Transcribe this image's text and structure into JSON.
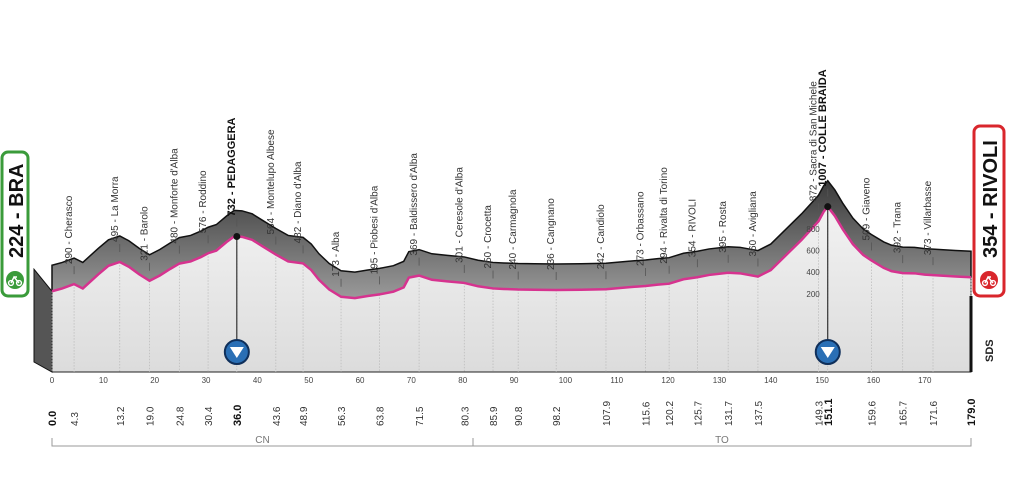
{
  "chart_data": {
    "type": "area",
    "title": "",
    "start": {
      "name": "BRA",
      "altitude": "224",
      "color": "#3a9b3a"
    },
    "finish": {
      "name": "RIVOLI",
      "altitude": "354",
      "color": "#d9262c"
    },
    "xlim": [
      0,
      179
    ],
    "ylim": [
      0,
      1100
    ],
    "distance_ticks": [
      "0",
      "10",
      "20",
      "30",
      "40",
      "50",
      "60",
      "70",
      "80",
      "90",
      "100",
      "110",
      "120",
      "130",
      "140",
      "150",
      "160",
      "170"
    ],
    "altitude_ticks": [
      "200",
      "400",
      "600",
      "800"
    ],
    "regions": [
      "CN",
      "TO"
    ],
    "brand": "SDS",
    "waypoints": [
      {
        "km": "0.0",
        "x": 0,
        "alt": 224,
        "label": "",
        "bold": true
      },
      {
        "km": "4.3",
        "x": 4.3,
        "alt": 290,
        "label": "290 - Cherasco",
        "bold": false
      },
      {
        "km": "13.2",
        "x": 13.2,
        "alt": 495,
        "label": "495 - La Morra",
        "bold": false
      },
      {
        "km": "19.0",
        "x": 19.0,
        "alt": 321,
        "label": "321 - Barolo",
        "bold": false
      },
      {
        "km": "24.8",
        "x": 24.8,
        "alt": 480,
        "label": "480 - Monforte d'Alba",
        "bold": false
      },
      {
        "km": "30.4",
        "x": 30.4,
        "alt": 576,
        "label": "576 - Roddino",
        "bold": false
      },
      {
        "km": "36.0",
        "x": 36.0,
        "alt": 732,
        "label": "732 - PEDAGGERA",
        "bold": true
      },
      {
        "km": "43.6",
        "x": 43.6,
        "alt": 564,
        "label": "564 - Montelupo Albese",
        "bold": false
      },
      {
        "km": "48.9",
        "x": 48.9,
        "alt": 482,
        "label": "482 - Diano d'Alba",
        "bold": false
      },
      {
        "km": "56.3",
        "x": 56.3,
        "alt": 173,
        "label": "173 - Alba",
        "bold": false
      },
      {
        "km": "63.8",
        "x": 63.8,
        "alt": 195,
        "label": "195 - Piobesi d'Alba",
        "bold": false
      },
      {
        "km": "71.5",
        "x": 71.5,
        "alt": 369,
        "label": "369 - Baldissero d'Alba",
        "bold": false
      },
      {
        "km": "80.3",
        "x": 80.3,
        "alt": 301,
        "label": "301 - Ceresole d'Alba",
        "bold": false
      },
      {
        "km": "85.9",
        "x": 85.9,
        "alt": 250,
        "label": "250 - Crocetta",
        "bold": false
      },
      {
        "km": "90.8",
        "x": 90.8,
        "alt": 240,
        "label": "240 - Carmagnola",
        "bold": false
      },
      {
        "km": "98.2",
        "x": 98.2,
        "alt": 236,
        "label": "236 - Cangnano",
        "bold": false
      },
      {
        "km": "107.9",
        "x": 107.9,
        "alt": 242,
        "label": "242 - Candiolo",
        "bold": false
      },
      {
        "km": "115.6",
        "x": 115.6,
        "alt": 273,
        "label": "273 - Orbassano",
        "bold": false
      },
      {
        "km": "120.2",
        "x": 120.2,
        "alt": 294,
        "label": "294 - Rivalta di Torino",
        "bold": false
      },
      {
        "km": "125.7",
        "x": 125.7,
        "alt": 354,
        "label": "354 - RIVOLI",
        "bold": false
      },
      {
        "km": "131.7",
        "x": 131.7,
        "alt": 395,
        "label": "395 - Rosta",
        "bold": false
      },
      {
        "km": "137.5",
        "x": 137.5,
        "alt": 360,
        "label": "360 - Avigliana",
        "bold": false
      },
      {
        "km": "149.3",
        "x": 149.3,
        "alt": 872,
        "label": "872 - Sacra di San Michele",
        "bold": false
      },
      {
        "km": "151.1",
        "x": 151.1,
        "alt": 1007,
        "label": "1007 - COLLE BRAIDA",
        "bold": true
      },
      {
        "km": "159.6",
        "x": 159.6,
        "alt": 509,
        "label": "509 - Giaveno",
        "bold": false
      },
      {
        "km": "165.7",
        "x": 165.7,
        "alt": 392,
        "label": "392 - Trana",
        "bold": false
      },
      {
        "km": "171.6",
        "x": 171.6,
        "alt": 373,
        "label": "373 - Villarbasse",
        "bold": false
      },
      {
        "km": "179.0",
        "x": 179.0,
        "alt": 354,
        "label": "",
        "bold": true
      }
    ],
    "profile": [
      [
        0,
        224
      ],
      [
        2,
        250
      ],
      [
        4.3,
        290
      ],
      [
        6,
        250
      ],
      [
        9,
        380
      ],
      [
        11,
        460
      ],
      [
        13.2,
        495
      ],
      [
        15,
        450
      ],
      [
        17,
        380
      ],
      [
        19,
        321
      ],
      [
        21,
        370
      ],
      [
        23,
        430
      ],
      [
        24.8,
        480
      ],
      [
        27,
        500
      ],
      [
        29,
        540
      ],
      [
        30.4,
        576
      ],
      [
        32,
        600
      ],
      [
        34,
        680
      ],
      [
        35.5,
        732
      ],
      [
        37,
        728
      ],
      [
        39,
        700
      ],
      [
        41,
        640
      ],
      [
        43.6,
        564
      ],
      [
        46,
        500
      ],
      [
        48.9,
        482
      ],
      [
        50.5,
        420
      ],
      [
        52,
        330
      ],
      [
        54,
        240
      ],
      [
        56.3,
        173
      ],
      [
        59,
        160
      ],
      [
        61.5,
        180
      ],
      [
        63.8,
        195
      ],
      [
        66.5,
        220
      ],
      [
        68.5,
        260
      ],
      [
        69.5,
        350
      ],
      [
        71.5,
        369
      ],
      [
        74,
        330
      ],
      [
        77,
        315
      ],
      [
        80.3,
        301
      ],
      [
        83,
        270
      ],
      [
        85.9,
        250
      ],
      [
        88,
        245
      ],
      [
        90.8,
        240
      ],
      [
        94,
        238
      ],
      [
        98.2,
        236
      ],
      [
        103,
        238
      ],
      [
        107.9,
        242
      ],
      [
        112,
        260
      ],
      [
        115.6,
        273
      ],
      [
        118,
        285
      ],
      [
        120.2,
        294
      ],
      [
        123,
        335
      ],
      [
        125.7,
        354
      ],
      [
        128,
        375
      ],
      [
        131.7,
        395
      ],
      [
        134,
        390
      ],
      [
        137.5,
        360
      ],
      [
        140,
        420
      ],
      [
        143,
        560
      ],
      [
        146,
        700
      ],
      [
        149.3,
        872
      ],
      [
        150.3,
        960
      ],
      [
        151.1,
        1007
      ],
      [
        152.5,
        920
      ],
      [
        154,
        800
      ],
      [
        156,
        660
      ],
      [
        158,
        560
      ],
      [
        159.6,
        509
      ],
      [
        162,
        440
      ],
      [
        163.5,
        410
      ],
      [
        165.7,
        392
      ],
      [
        168,
        390
      ],
      [
        170,
        378
      ],
      [
        171.6,
        373
      ],
      [
        174,
        366
      ],
      [
        176,
        360
      ],
      [
        179,
        354
      ]
    ],
    "gpm": [
      {
        "name": "PEDAGGERA",
        "km": 36.0
      },
      {
        "name": "COLLE BRAIDA",
        "km": 151.1
      }
    ]
  }
}
